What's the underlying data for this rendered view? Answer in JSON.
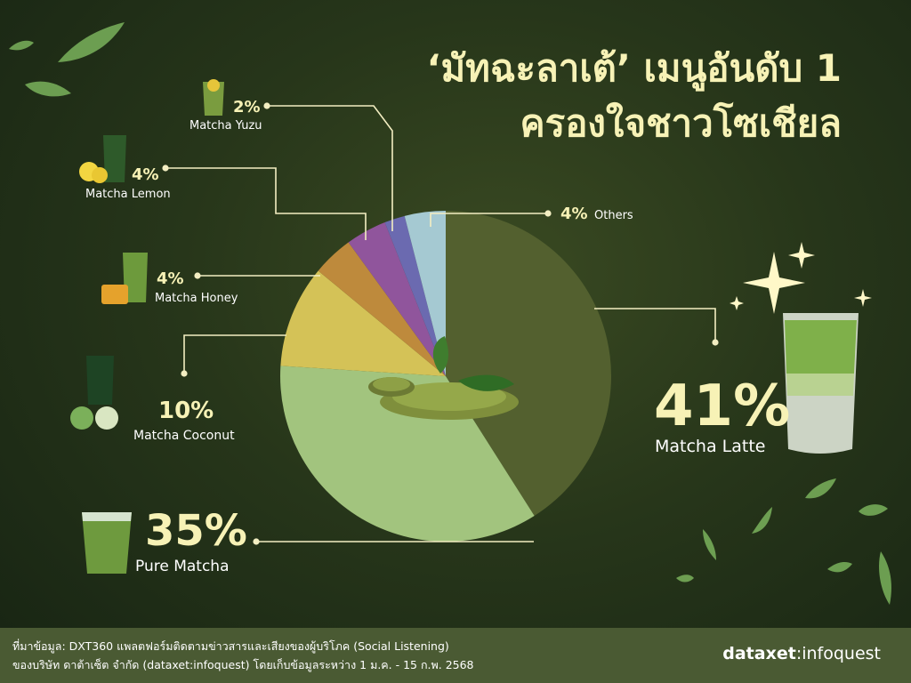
{
  "title_line1": "‘มัทฉะลาเต้’ เมนูอันดับ 1",
  "title_line2": "ครองใจชาวโซเชียล",
  "source_line1": "ที่มาข้อมูล: DXT360 แพลตฟอร์มติดตามข่าวสารและเสียงของผู้บริโภค (Social Listening)",
  "source_line2": "ของบริษัท ดาต้าเซ็ต จำกัด (dataxet:infoquest) โดยเก็บข้อมูลระหว่าง  1 ม.ค. - 15 ก.พ. 2568",
  "brand_bold": "dataxet",
  "brand_light": "infoquest",
  "chart_data": {
    "type": "pie",
    "unit": "%",
    "slices": [
      {
        "label": "Matcha Latte",
        "value": 41,
        "display": "41%",
        "color": "#53602f"
      },
      {
        "label": "Pure Matcha",
        "value": 35,
        "display": "35%",
        "color": "#a2c47e"
      },
      {
        "label": "Matcha Coconut",
        "value": 10,
        "display": "10%",
        "color": "#d4c257"
      },
      {
        "label": "Matcha Honey",
        "value": 4,
        "display": "4%",
        "color": "#be8a3c"
      },
      {
        "label": "Matcha Lemon",
        "value": 4,
        "display": "4%",
        "color": "#90559c"
      },
      {
        "label": "Matcha Yuzu",
        "value": 2,
        "display": "2%",
        "color": "#6b6ab0"
      },
      {
        "label": "Others",
        "value": 4,
        "display": "4%",
        "color": "#a5c9d2"
      }
    ]
  }
}
